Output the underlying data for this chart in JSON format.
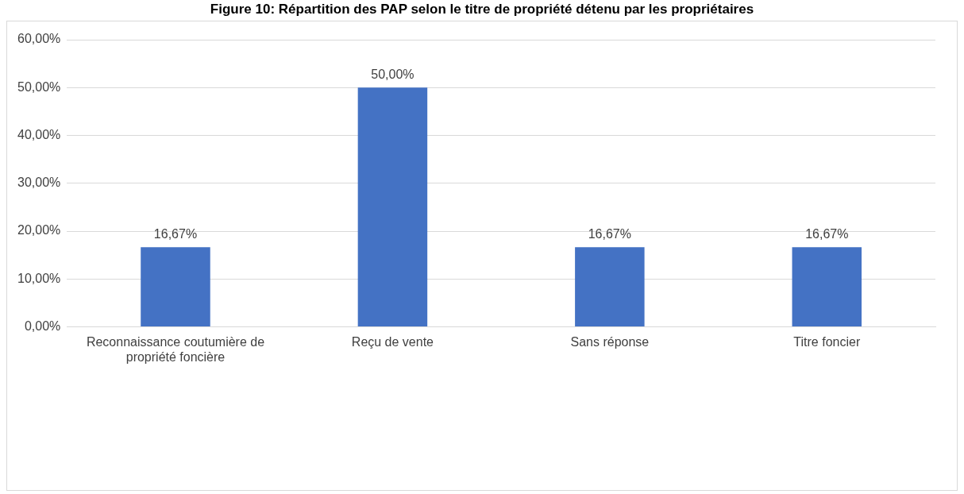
{
  "chart_data": {
    "type": "bar",
    "title": "Figure 10: Répartition des PAP selon le titre de propriété détenu par les propriétaires",
    "categories": [
      "Reconnaissance coutumière de propriété foncière",
      "Reçu de vente",
      "Sans réponse",
      "Titre foncier"
    ],
    "values": [
      16.67,
      50,
      16.67,
      16.67
    ],
    "color": "#4472c4",
    "value_labels": [
      "16,67%",
      "50,00%",
      "16,67%",
      "16,67%"
    ],
    "ylim": [
      0,
      60
    ],
    "yticks": [
      {
        "value": 0,
        "label": "0,00%"
      },
      {
        "value": 10,
        "label": "10,00%"
      },
      {
        "value": 20,
        "label": "20,00%"
      },
      {
        "value": 30,
        "label": "30,00%"
      },
      {
        "value": 40,
        "label": "40,00%"
      },
      {
        "value": 50,
        "label": "50,00%"
      },
      {
        "value": 60,
        "label": "60,00%"
      }
    ],
    "grid": "y",
    "legend": false
  }
}
